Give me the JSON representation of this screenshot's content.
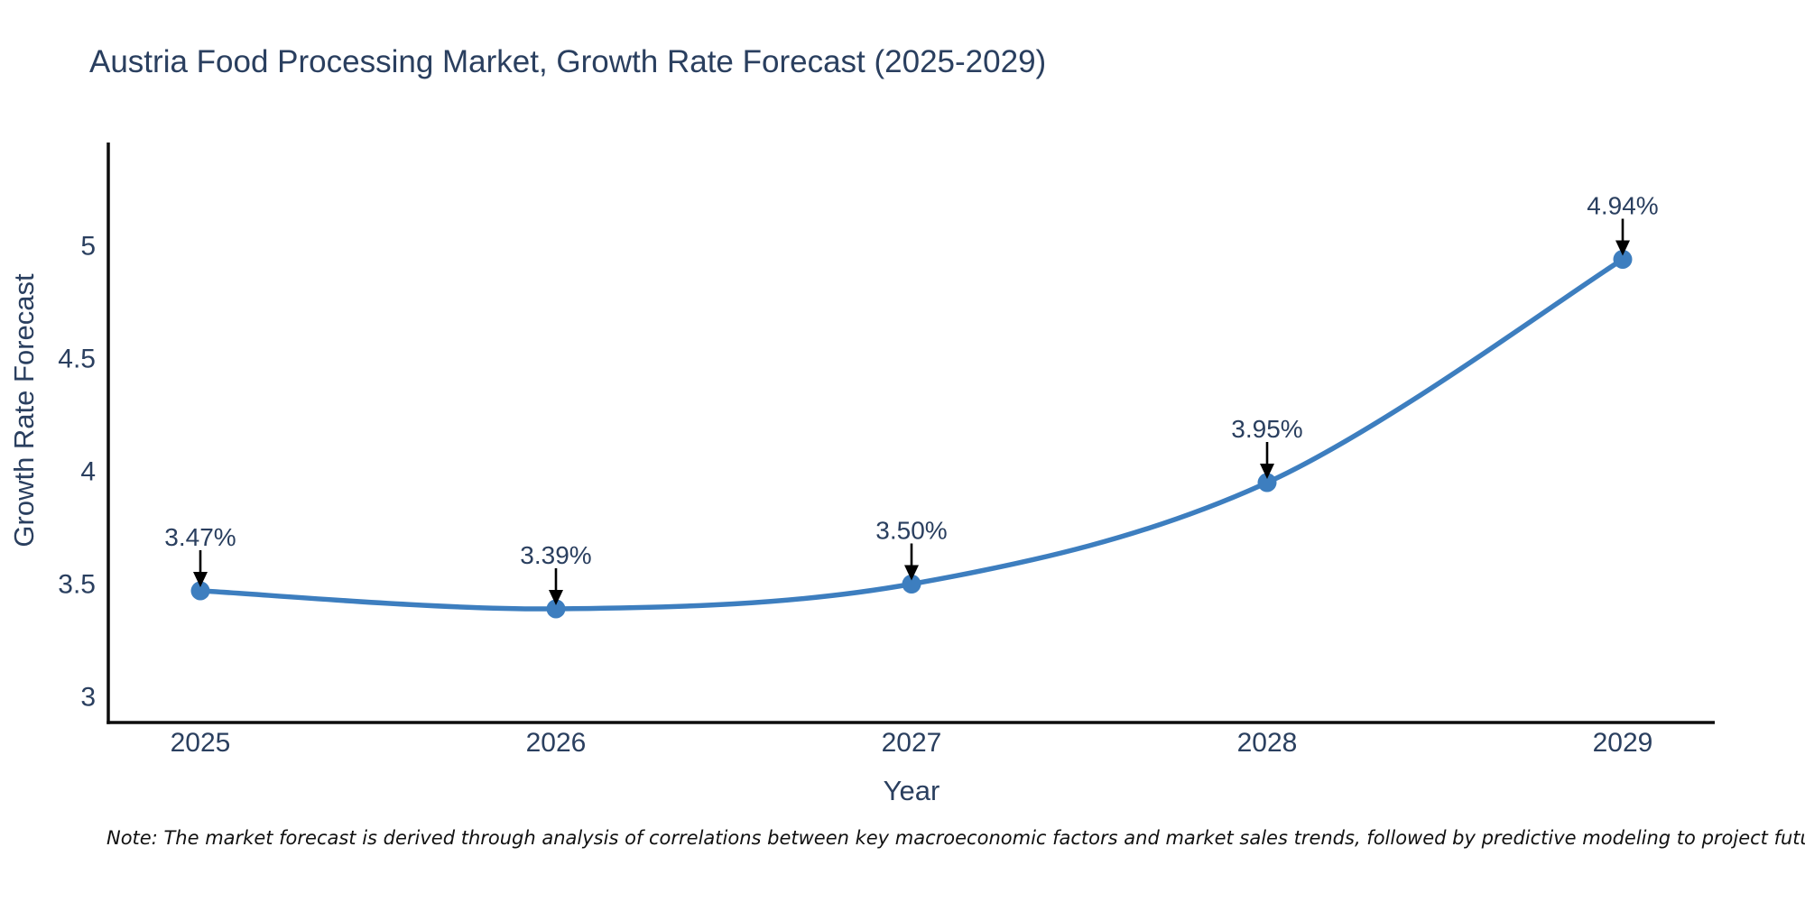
{
  "title": "Austria Food Processing Market, Growth Rate Forecast (2025-2029)",
  "note": "Note: The market forecast is derived through analysis of correlations between key macroeconomic factors and market sales trends, followed by predictive modeling to project future sales.",
  "chart_data": {
    "type": "line",
    "title": "Austria Food Processing Market, Growth Rate Forecast (2025-2029)",
    "xlabel": "Year",
    "ylabel": "Growth Rate Forecast",
    "x": [
      "2025",
      "2026",
      "2027",
      "2028",
      "2029"
    ],
    "series": [
      {
        "name": "Growth Rate Forecast",
        "values": [
          3.47,
          3.39,
          3.5,
          3.95,
          4.94
        ],
        "point_labels": [
          "3.47%",
          "3.39%",
          "3.50%",
          "3.95%",
          "4.94%"
        ]
      }
    ],
    "yticks": [
      3,
      3.5,
      4,
      4.5,
      5
    ],
    "ylim": [
      2.89,
      5.46
    ],
    "grid": false,
    "legend": "none",
    "line_shape": "spline",
    "annotation_arrows": true,
    "colors": {
      "line": "#3d7ebf",
      "marker": "#3d7ebf",
      "axis_line": "#0d0d0d",
      "tick_text": "#2a3f5f",
      "annotation_text": "#2a3f5f",
      "title_text": "#2a3f5f",
      "arrow": "#000000",
      "background": "#ffffff"
    }
  }
}
